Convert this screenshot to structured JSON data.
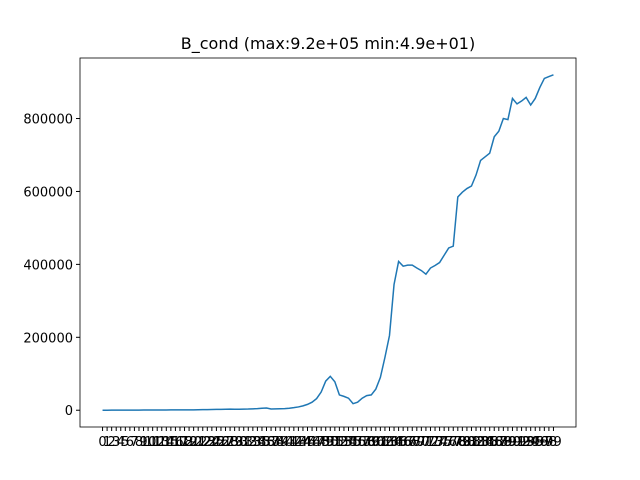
{
  "chart_data": {
    "type": "line",
    "title": "B_cond (max:9.2e+05 min:4.9e+01)",
    "x": [
      0,
      1,
      2,
      3,
      4,
      5,
      6,
      7,
      8,
      9,
      10,
      11,
      12,
      13,
      14,
      15,
      16,
      17,
      18,
      19,
      20,
      21,
      22,
      23,
      24,
      25,
      26,
      27,
      28,
      29,
      30,
      31,
      32,
      33,
      34,
      35,
      36,
      37,
      38,
      39,
      40,
      41,
      42,
      43,
      44,
      45,
      46,
      47,
      48,
      49,
      50,
      51,
      52,
      53,
      54,
      55,
      56,
      57,
      58,
      59,
      60,
      61,
      62,
      63,
      64,
      65,
      66,
      67,
      68,
      69,
      70,
      71,
      72,
      73,
      74,
      75,
      76,
      77,
      78,
      79,
      80,
      81,
      82,
      83,
      84,
      85,
      86,
      87,
      88,
      89,
      90,
      91,
      92,
      93,
      94,
      95,
      96,
      97,
      98,
      99
    ],
    "series": [
      {
        "color": "#1f77b4",
        "values": [
          49,
          100,
          150,
          200,
          250,
          300,
          350,
          400,
          450,
          500,
          550,
          600,
          650,
          700,
          750,
          800,
          850,
          900,
          950,
          1000,
          1100,
          1300,
          1500,
          1800,
          2000,
          2200,
          2500,
          2800,
          3000,
          2800,
          2700,
          2900,
          3200,
          3800,
          4500,
          5500,
          6000,
          3500,
          3800,
          4200,
          4500,
          5500,
          7000,
          9000,
          12000,
          16000,
          22000,
          32000,
          50000,
          80000,
          93000,
          78000,
          42000,
          38000,
          33000,
          18000,
          22000,
          33000,
          40000,
          42000,
          58000,
          90000,
          145000,
          205000,
          345000,
          408000,
          395000,
          398000,
          398000,
          390000,
          383000,
          373000,
          390000,
          397000,
          405000,
          425000,
          445000,
          450000,
          585000,
          598000,
          608000,
          615000,
          645000,
          685000,
          695000,
          705000,
          750000,
          765000,
          800000,
          797000,
          855000,
          840000,
          848000,
          858000,
          837000,
          855000,
          885000,
          910000,
          915000,
          920000
        ]
      }
    ],
    "xlim": [
      -4.95,
      103.95
    ],
    "xticks": [
      0,
      1,
      2,
      3,
      4,
      5,
      6,
      7,
      8,
      9,
      10,
      11,
      12,
      13,
      14,
      15,
      16,
      17,
      18,
      19,
      20,
      21,
      22,
      23,
      24,
      25,
      26,
      27,
      28,
      29,
      30,
      31,
      32,
      33,
      34,
      35,
      36,
      37,
      38,
      39,
      40,
      41,
      42,
      43,
      44,
      45,
      46,
      47,
      48,
      49,
      50,
      51,
      52,
      53,
      54,
      55,
      56,
      57,
      58,
      59,
      60,
      61,
      62,
      63,
      64,
      65,
      66,
      67,
      68,
      69,
      70,
      71,
      72,
      73,
      74,
      75,
      76,
      77,
      78,
      79,
      80,
      81,
      82,
      83,
      84,
      85,
      86,
      87,
      88,
      89,
      90,
      91,
      92,
      93,
      94,
      95,
      96,
      97,
      98,
      99
    ],
    "ylim": [
      -46000,
      966000
    ],
    "yticks": [
      0,
      200000,
      400000,
      600000,
      800000
    ]
  }
}
